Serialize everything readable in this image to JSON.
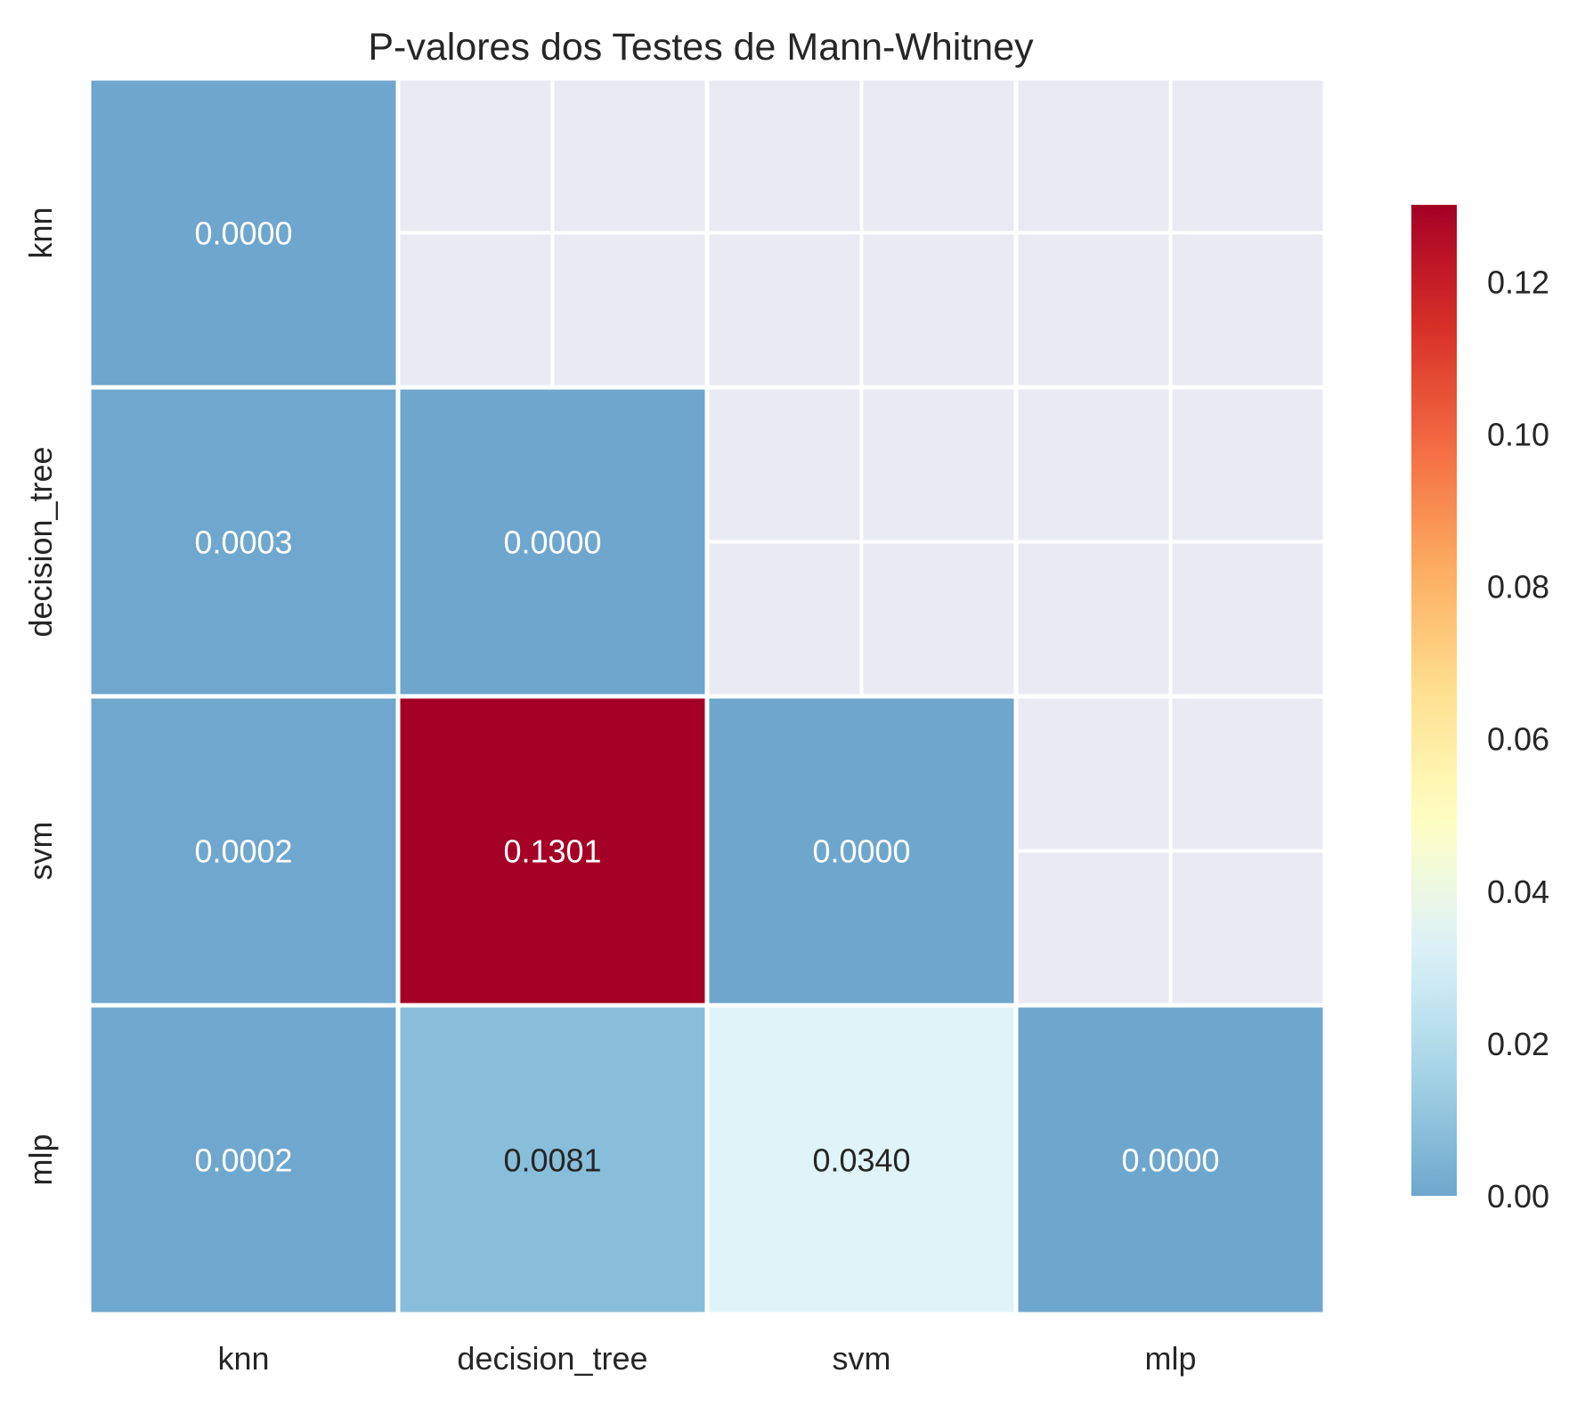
{
  "chart_data": {
    "type": "heatmap",
    "title": "P-valores dos Testes de Mann-Whitney",
    "xlabel": "",
    "ylabel": "",
    "x_categories": [
      "knn",
      "decision_tree",
      "svm",
      "mlp"
    ],
    "y_categories": [
      "knn",
      "decision_tree",
      "svm",
      "mlp"
    ],
    "values": [
      [
        0.0,
        null,
        null,
        null
      ],
      [
        0.0003,
        0.0,
        null,
        null
      ],
      [
        0.0002,
        0.1301,
        0.0,
        null
      ],
      [
        0.0002,
        0.0081,
        0.034,
        0.0
      ]
    ],
    "cell_labels": [
      [
        "0.0000",
        "",
        "",
        ""
      ],
      [
        "0.0003",
        "0.0000",
        "",
        ""
      ],
      [
        "0.0002",
        "0.1301",
        "0.0000",
        ""
      ],
      [
        "0.0002",
        "0.0081",
        "0.0340",
        "0.0000"
      ]
    ],
    "mask": "upper-triangle",
    "colormap": "RdYlBu_r",
    "center": 0.05,
    "vmin": 0.0,
    "vmax": 0.1301,
    "colorbar_ticks": [
      0.0,
      0.02,
      0.04,
      0.06,
      0.08,
      0.1,
      0.12
    ],
    "colorbar_tick_labels": [
      "0.00",
      "0.02",
      "0.04",
      "0.06",
      "0.08",
      "0.10",
      "0.12"
    ],
    "grid": true,
    "colors": {
      "masked_background": "#eaeaf2",
      "grid_line": "#ffffff",
      "cell_separator": "#ffffff",
      "text_dark": "#262626",
      "text_light": "#ffffff"
    }
  }
}
